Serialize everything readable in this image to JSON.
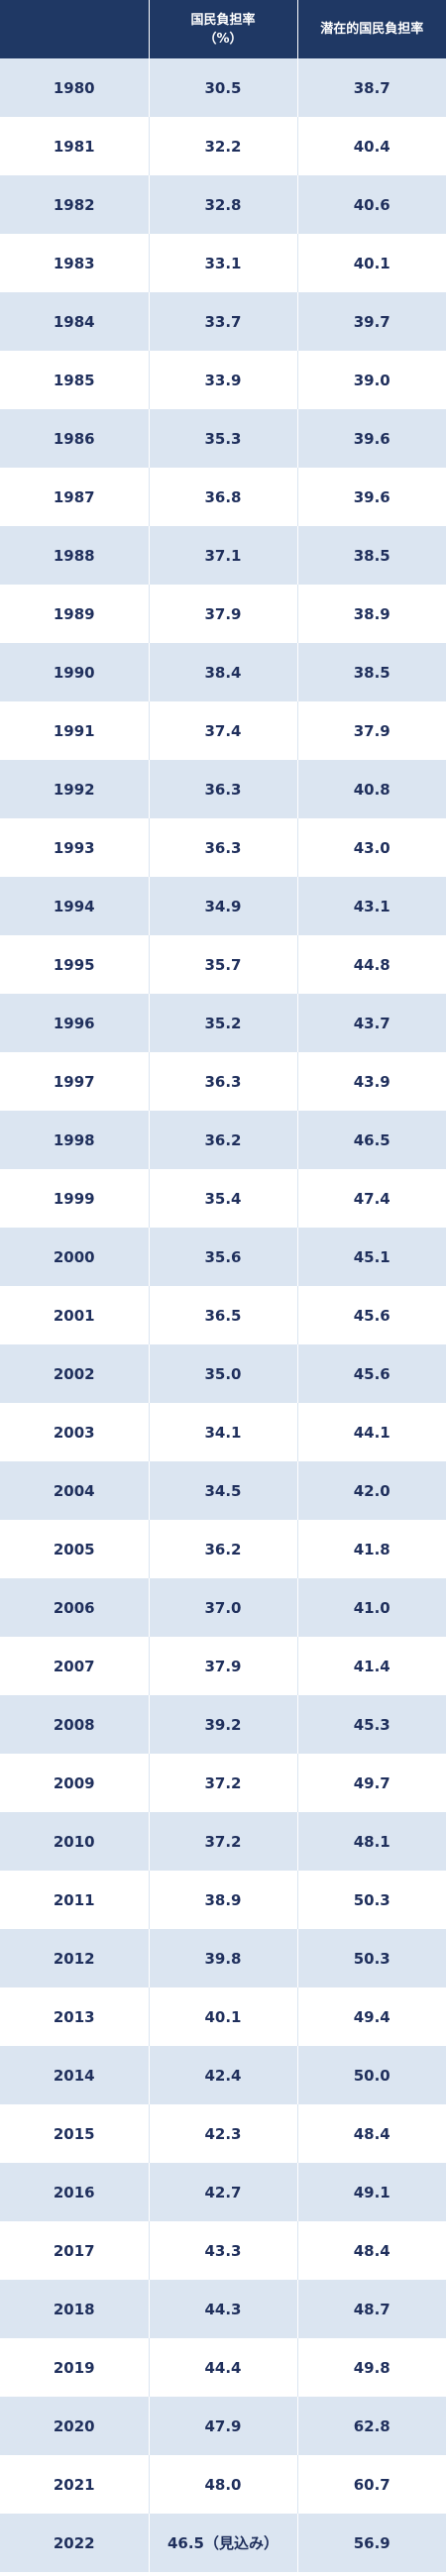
{
  "header": {
    "year_label": "",
    "national_burden_line1": "国民負担率",
    "national_burden_line2": "（%）",
    "potential_burden": "潜在的国民負担率"
  },
  "rows": [
    {
      "year": "1980",
      "national": "30.5",
      "potential": "38.7"
    },
    {
      "year": "1981",
      "national": "32.2",
      "potential": "40.4"
    },
    {
      "year": "1982",
      "national": "32.8",
      "potential": "40.6"
    },
    {
      "year": "1983",
      "national": "33.1",
      "potential": "40.1"
    },
    {
      "year": "1984",
      "national": "33.7",
      "potential": "39.7"
    },
    {
      "year": "1985",
      "national": "33.9",
      "potential": "39.0"
    },
    {
      "year": "1986",
      "national": "35.3",
      "potential": "39.6"
    },
    {
      "year": "1987",
      "national": "36.8",
      "potential": "39.6"
    },
    {
      "year": "1988",
      "national": "37.1",
      "potential": "38.5"
    },
    {
      "year": "1989",
      "national": "37.9",
      "potential": "38.9"
    },
    {
      "year": "1990",
      "national": "38.4",
      "potential": "38.5"
    },
    {
      "year": "1991",
      "national": "37.4",
      "potential": "37.9"
    },
    {
      "year": "1992",
      "national": "36.3",
      "potential": "40.8"
    },
    {
      "year": "1993",
      "national": "36.3",
      "potential": "43.0"
    },
    {
      "year": "1994",
      "national": "34.9",
      "potential": "43.1"
    },
    {
      "year": "1995",
      "national": "35.7",
      "potential": "44.8"
    },
    {
      "year": "1996",
      "national": "35.2",
      "potential": "43.7"
    },
    {
      "year": "1997",
      "national": "36.3",
      "potential": "43.9"
    },
    {
      "year": "1998",
      "national": "36.2",
      "potential": "46.5"
    },
    {
      "year": "1999",
      "national": "35.4",
      "potential": "47.4"
    },
    {
      "year": "2000",
      "national": "35.6",
      "potential": "45.1"
    },
    {
      "year": "2001",
      "national": "36.5",
      "potential": "45.6"
    },
    {
      "year": "2002",
      "national": "35.0",
      "potential": "45.6"
    },
    {
      "year": "2003",
      "national": "34.1",
      "potential": "44.1"
    },
    {
      "year": "2004",
      "national": "34.5",
      "potential": "42.0"
    },
    {
      "year": "2005",
      "national": "36.2",
      "potential": "41.8"
    },
    {
      "year": "2006",
      "national": "37.0",
      "potential": "41.0"
    },
    {
      "year": "2007",
      "national": "37.9",
      "potential": "41.4"
    },
    {
      "year": "2008",
      "national": "39.2",
      "potential": "45.3"
    },
    {
      "year": "2009",
      "national": "37.2",
      "potential": "49.7"
    },
    {
      "year": "2010",
      "national": "37.2",
      "potential": "48.1"
    },
    {
      "year": "2011",
      "national": "38.9",
      "potential": "50.3"
    },
    {
      "year": "2012",
      "national": "39.8",
      "potential": "50.3"
    },
    {
      "year": "2013",
      "national": "40.1",
      "potential": "49.4"
    },
    {
      "year": "2014",
      "national": "42.4",
      "potential": "50.0"
    },
    {
      "year": "2015",
      "national": "42.3",
      "potential": "48.4"
    },
    {
      "year": "2016",
      "national": "42.7",
      "potential": "49.1"
    },
    {
      "year": "2017",
      "national": "43.3",
      "potential": "48.4"
    },
    {
      "year": "2018",
      "national": "44.3",
      "potential": "48.7"
    },
    {
      "year": "2019",
      "national": "44.4",
      "potential": "49.8"
    },
    {
      "year": "2020",
      "national": "47.9",
      "potential": "62.8"
    },
    {
      "year": "2021",
      "national": "48.0",
      "potential": "60.7"
    },
    {
      "year": "2022",
      "national": "46.5（見込み）",
      "potential": "56.9"
    }
  ],
  "colors": {
    "header_bg": "#1f3864",
    "header_text": "#ffffff",
    "stripe": "#dbe5f1",
    "cell_text": "#1f2f5c"
  }
}
